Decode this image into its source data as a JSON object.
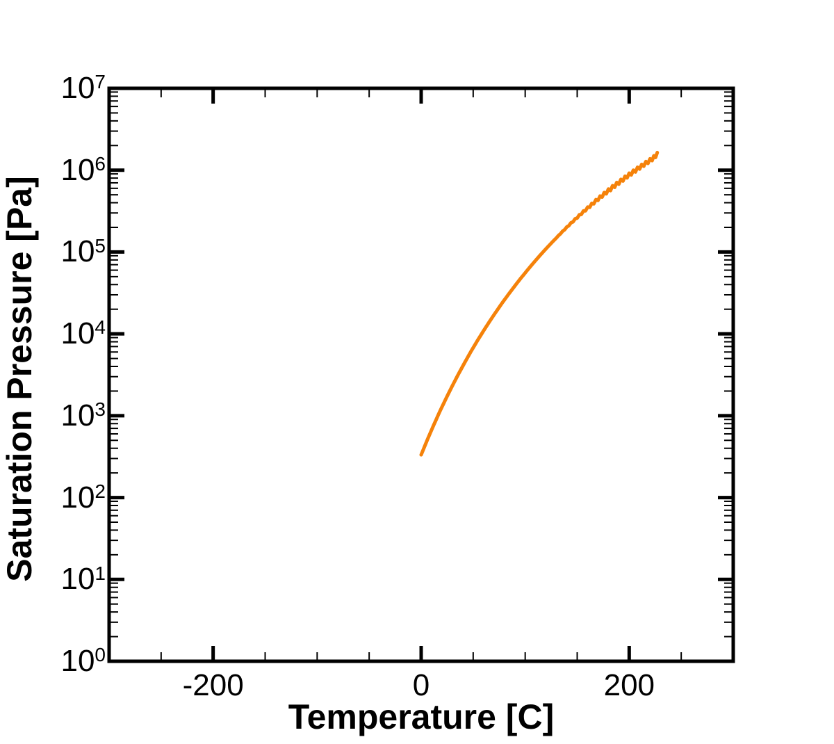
{
  "chart_data": {
    "type": "line",
    "title": "",
    "xlabel": "Temperature [C]",
    "ylabel": "Saturation Pressure [Pa]",
    "x_axis": {
      "min": -300,
      "max": 300,
      "major_ticks": [
        {
          "value": -200,
          "label": "-200"
        },
        {
          "value": 0,
          "label": "0"
        },
        {
          "value": 200,
          "label": "200"
        }
      ],
      "minor_tick_step": 50,
      "grid": false
    },
    "y_axis": {
      "scale": "log",
      "min_exponent": 0,
      "max_exponent": 7,
      "tick_base": "10",
      "tick_exponents": [
        0,
        1,
        2,
        3,
        4,
        5,
        6,
        7
      ],
      "minor_ticks_per_decade": [
        2,
        3,
        4,
        5,
        6,
        7,
        8,
        9
      ],
      "grid": false
    },
    "legend": {
      "visible": false
    },
    "series": [
      {
        "name": "saturation-pressure-curve",
        "color": "#F5820A",
        "line_width": 5,
        "points_format": [
          "temperature_C",
          "log10_pressure_Pa"
        ],
        "points": [
          [
            0,
            2.522
          ],
          [
            6,
            2.708
          ],
          [
            12,
            2.885
          ],
          [
            18,
            3.053
          ],
          [
            24,
            3.213
          ],
          [
            30,
            3.366
          ],
          [
            36,
            3.513
          ],
          [
            42,
            3.653
          ],
          [
            48,
            3.787
          ],
          [
            54,
            3.915
          ],
          [
            60,
            4.038
          ],
          [
            66,
            4.156
          ],
          [
            72,
            4.27
          ],
          [
            78,
            4.379
          ],
          [
            84,
            4.484
          ],
          [
            90,
            4.585
          ],
          [
            96,
            4.683
          ],
          [
            102,
            4.777
          ],
          [
            108,
            4.867
          ],
          [
            114,
            4.955
          ],
          [
            120,
            5.039
          ],
          [
            126,
            5.121
          ],
          [
            132,
            5.2
          ],
          [
            138,
            5.277
          ],
          [
            144,
            5.351
          ],
          [
            150,
            5.422
          ],
          [
            156,
            5.492
          ],
          [
            162,
            5.559
          ],
          [
            168,
            5.625
          ],
          [
            174,
            5.688
          ],
          [
            180,
            5.75
          ],
          [
            186,
            5.81
          ],
          [
            192,
            5.868
          ],
          [
            198,
            5.925
          ],
          [
            204,
            5.98
          ],
          [
            210,
            6.033
          ],
          [
            216,
            6.085
          ],
          [
            222,
            6.136
          ],
          [
            227,
            6.195
          ]
        ]
      }
    ],
    "frame_color": "#000000",
    "background_color": "#ffffff"
  }
}
